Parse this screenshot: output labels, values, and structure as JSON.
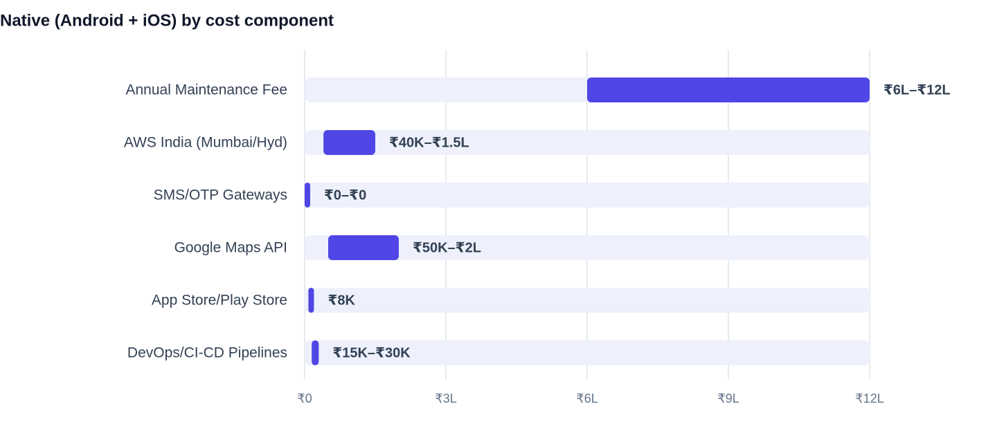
{
  "chart_data": {
    "type": "range-bar",
    "title": "Native (Android + iOS) by cost component",
    "categories": [
      "Annual Maintenance Fee",
      "AWS India (Mumbai/Hyd)",
      "SMS/OTP Gateways",
      "Google Maps API",
      "App Store/Play Store",
      "DevOps/CI-CD Pipelines"
    ],
    "low": [
      600000,
      40000,
      0,
      50000,
      8000,
      15000
    ],
    "high": [
      1200000,
      150000,
      0,
      200000,
      8000,
      30000
    ],
    "value_labels": [
      "₹6L–₹12L",
      "₹40K–₹1.5L",
      "₹0–₹0",
      "₹50K–₹2L",
      "₹8K",
      "₹15K–₹30K"
    ],
    "color": "#4f46e5",
    "xlim": [
      0,
      1200000
    ],
    "xticks": [
      {
        "value": 0,
        "label": "₹0"
      },
      {
        "value": 300000,
        "label": "₹3L"
      },
      {
        "value": 600000,
        "label": "₹6L"
      },
      {
        "value": 900000,
        "label": "₹9L"
      },
      {
        "value": 1200000,
        "label": "₹12L"
      }
    ],
    "grid": true
  }
}
